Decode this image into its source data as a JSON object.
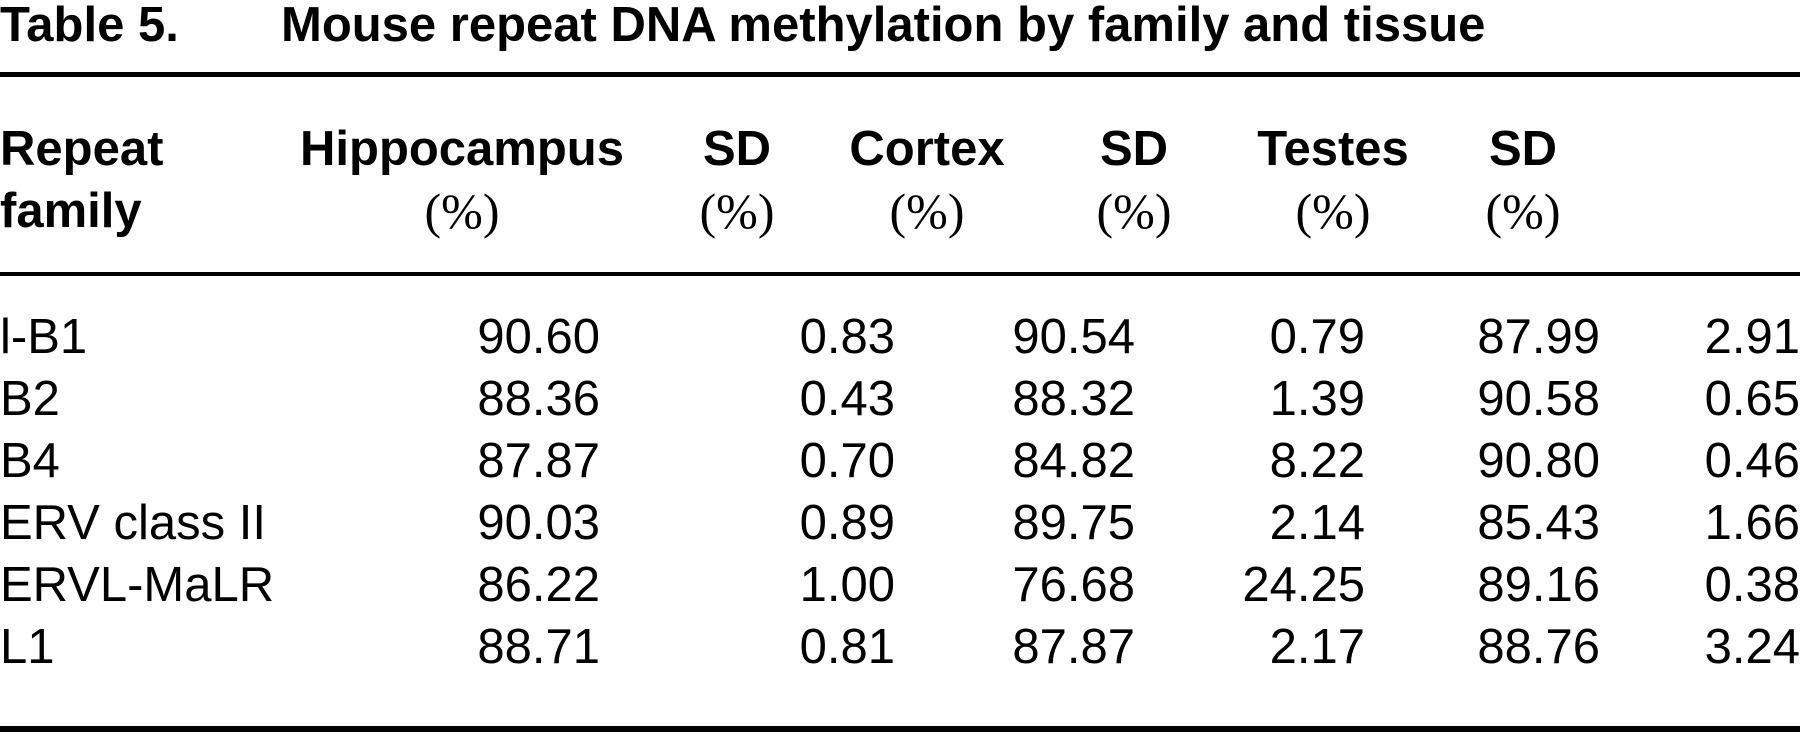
{
  "table": {
    "caption_label": "Table 5.",
    "caption_title": "Mouse repeat DNA methylation by family and tissue",
    "columns": [
      {
        "name": "Repeat",
        "unit": "family"
      },
      {
        "name": "Hippocampus",
        "unit": "(%)"
      },
      {
        "name": "SD",
        "unit": "(%)"
      },
      {
        "name": "Cortex",
        "unit": "(%)"
      },
      {
        "name": "SD",
        "unit": "(%)"
      },
      {
        "name": "Testes",
        "unit": "(%)"
      },
      {
        "name": "SD",
        "unit": "(%)"
      }
    ],
    "rows": [
      [
        "l-B1",
        "90.60",
        "0.83",
        "90.54",
        "0.79",
        "87.99",
        "2.91"
      ],
      [
        "B2",
        "88.36",
        "0.43",
        "88.32",
        "1.39",
        "90.58",
        "0.65"
      ],
      [
        "B4",
        "87.87",
        "0.70",
        "84.82",
        "8.22",
        "90.80",
        "0.46"
      ],
      [
        "ERV class II",
        "90.03",
        "0.89",
        "89.75",
        "2.14",
        "85.43",
        "1.66"
      ],
      [
        "ERVL-MaLR",
        "86.22",
        "1.00",
        "76.68",
        "24.25",
        "89.16",
        "0.38"
      ],
      [
        "L1",
        "88.71",
        "0.81",
        "87.87",
        "2.17",
        "88.76",
        "3.24"
      ]
    ]
  }
}
